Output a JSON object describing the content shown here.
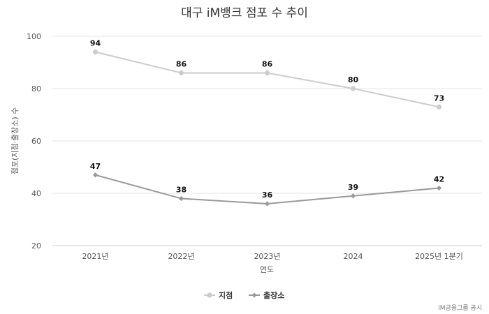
{
  "chart_data": {
    "type": "line",
    "title": "대구 iM뱅크 점포 수 추이",
    "xlabel": "연도",
    "ylabel": "점포(지점·출장소) 수",
    "categories": [
      "2021년",
      "2022년",
      "2023년",
      "2024",
      "2025년 1분기"
    ],
    "ylim": [
      20,
      100
    ],
    "yticks": [
      20,
      40,
      60,
      80,
      100
    ],
    "grid": true,
    "legend_position": "bottom-center",
    "series": [
      {
        "name": "지점",
        "values": [
          94,
          86,
          86,
          80,
          73
        ],
        "color": "#cccccc",
        "marker": "circle"
      },
      {
        "name": "출장소",
        "values": [
          47,
          38,
          36,
          39,
          42
        ],
        "color": "#999999",
        "marker": "diamond"
      }
    ],
    "source": "iM금융그룹 공시"
  }
}
